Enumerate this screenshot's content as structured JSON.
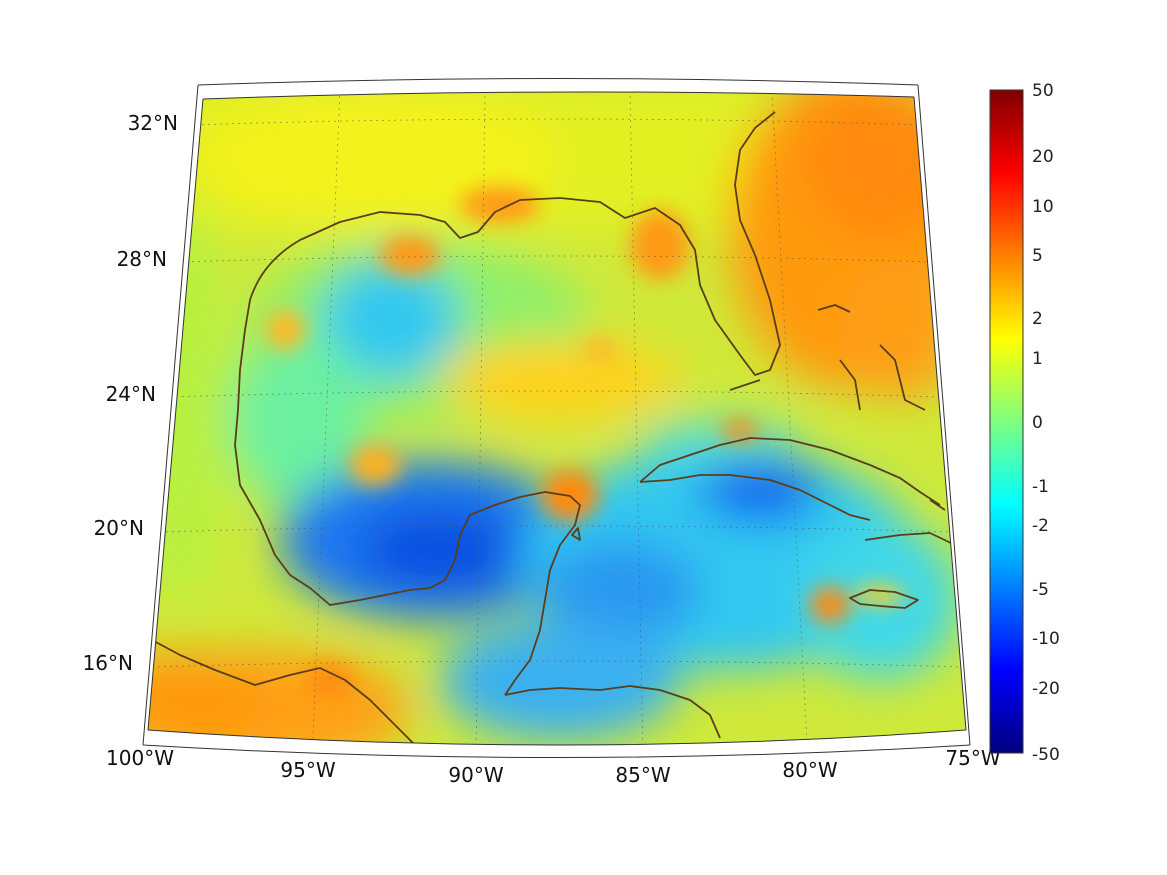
{
  "map": {
    "lon_labels": [
      "100°W",
      "95°W",
      "90°W",
      "85°W",
      "80°W",
      "75°W"
    ],
    "lat_labels": [
      "32°N",
      "28°N",
      "24°N",
      "20°N",
      "16°N"
    ],
    "extent": {
      "lon": [
        -100,
        -75
      ],
      "lat": [
        14.5,
        33
      ]
    },
    "projection": "conic",
    "graticule": "dotted",
    "coastline_color": "#5a3e1b"
  },
  "colorbar": {
    "ticks": [
      "50",
      "20",
      "10",
      "5",
      "2",
      "1",
      "0",
      "-1",
      "-2",
      "-5",
      "-10",
      "-20",
      "-50"
    ],
    "colormap": "jet",
    "top_color": "#7f0000",
    "bottom_color": "#00007f",
    "scale": "symmetric log"
  }
}
